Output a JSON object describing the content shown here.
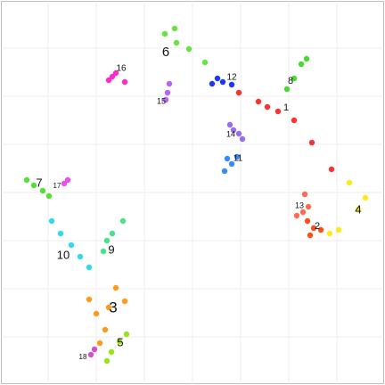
{
  "chart_data": {
    "type": "scatter",
    "title": "",
    "xlabel": "",
    "ylabel": "",
    "xlim": [
      0,
      432
    ],
    "ylim": [
      0,
      432
    ],
    "grid": true,
    "legend": "none",
    "series": [
      {
        "name": "",
        "color": "#ff1a1a",
        "values": [
          [
            312,
            125
          ],
          [
            300,
            120
          ],
          [
            330,
            135
          ],
          [
            350,
            160
          ],
          [
            372,
            190
          ],
          [
            290,
            114
          ],
          [
            268,
            104
          ]
        ]
      },
      {
        "name": "",
        "color": "#ff3b00",
        "values": [
          [
            352,
            256
          ],
          [
            348,
            264
          ],
          [
            360,
            258
          ],
          [
            345,
            248
          ]
        ]
      },
      {
        "name": "",
        "color": "#ff8f00",
        "values": [
          [
            122,
            345
          ],
          [
            108,
            352
          ],
          [
            140,
            338
          ],
          [
            118,
            370
          ],
          [
            130,
            323
          ],
          [
            100,
            336
          ],
          [
            112,
            385
          ]
        ]
      },
      {
        "name": "",
        "color": "#ffe800",
        "values": [
          [
            402,
            235
          ],
          [
            392,
            205
          ],
          [
            380,
            258
          ],
          [
            410,
            222
          ],
          [
            370,
            262
          ]
        ]
      },
      {
        "name": "",
        "color": "#8ee000",
        "values": [
          [
            134,
            383
          ],
          [
            125,
            395
          ],
          [
            142,
            375
          ],
          [
            120,
            405
          ]
        ]
      },
      {
        "name": "",
        "color": "#55e02b",
        "values": [
          [
            198,
            48
          ],
          [
            185,
            38
          ],
          [
            212,
            55
          ],
          [
            230,
            70
          ],
          [
            196,
            32
          ]
        ]
      },
      {
        "name": "",
        "color": "#3de01b",
        "values": [
          [
            38,
            208
          ],
          [
            30,
            202
          ],
          [
            48,
            214
          ],
          [
            55,
            220
          ]
        ]
      },
      {
        "name": "",
        "color": "#35d61a",
        "values": [
          [
            330,
            88
          ],
          [
            338,
            72
          ],
          [
            322,
            100
          ],
          [
            344,
            66
          ]
        ]
      },
      {
        "name": "",
        "color": "#33e07a",
        "values": [
          [
            120,
            270
          ],
          [
            116,
            282
          ],
          [
            126,
            262
          ],
          [
            138,
            248
          ]
        ]
      },
      {
        "name": "",
        "color": "#19d4ef",
        "values": [
          [
            68,
            262
          ],
          [
            58,
            248
          ],
          [
            80,
            275
          ],
          [
            90,
            288
          ],
          [
            100,
            300
          ]
        ]
      },
      {
        "name": "",
        "color": "#1e7fff",
        "values": [
          [
            260,
            184
          ],
          [
            255,
            178
          ],
          [
            266,
            176
          ],
          [
            252,
            192
          ]
        ]
      },
      {
        "name": "",
        "color": "#0022ff",
        "values": [
          [
            250,
            92
          ],
          [
            244,
            88
          ],
          [
            260,
            95
          ],
          [
            238,
            94
          ]
        ]
      },
      {
        "name": "",
        "color": "#ff5a3d",
        "values": [
          [
            340,
            238
          ],
          [
            333,
            242
          ],
          [
            346,
            232
          ],
          [
            342,
            218
          ]
        ]
      },
      {
        "name": "",
        "color": "#8a5cf6",
        "values": [
          [
            268,
            150
          ],
          [
            262,
            146
          ],
          [
            272,
            156
          ],
          [
            258,
            140
          ]
        ]
      },
      {
        "name": "",
        "color": "#b14fff",
        "values": [
          [
            188,
            104
          ],
          [
            190,
            94
          ],
          [
            186,
            112
          ]
        ]
      },
      {
        "name": "",
        "color": "#ff14c8",
        "values": [
          [
            126,
            86
          ],
          [
            122,
            90
          ],
          [
            130,
            82
          ],
          [
            140,
            92
          ]
        ]
      },
      {
        "name": "",
        "color": "#e83cf0",
        "values": [
          [
            72,
            206
          ],
          [
            76,
            202
          ]
        ]
      },
      {
        "name": "",
        "color": "#d13cc8",
        "values": [
          [
            102,
            398
          ],
          [
            106,
            392
          ]
        ]
      }
    ],
    "annotations": [
      {
        "text": "1",
        "x": 321,
        "y": 121,
        "size": 11
      },
      {
        "text": "2",
        "x": 356,
        "y": 254,
        "size": 11
      },
      {
        "text": "3",
        "x": 127,
        "y": 346,
        "size": 17
      },
      {
        "text": "4",
        "x": 402,
        "y": 236,
        "size": 13
      },
      {
        "text": "5",
        "x": 135,
        "y": 385,
        "size": 13
      },
      {
        "text": "6",
        "x": 186,
        "y": 59,
        "size": 15
      },
      {
        "text": "7",
        "x": 44,
        "y": 206,
        "size": 13
      },
      {
        "text": "8",
        "x": 326,
        "y": 91,
        "size": 11
      },
      {
        "text": "9",
        "x": 125,
        "y": 281,
        "size": 13
      },
      {
        "text": "10",
        "x": 71,
        "y": 287,
        "size": 13
      },
      {
        "text": "11",
        "x": 267,
        "y": 178,
        "size": 10
      },
      {
        "text": "12",
        "x": 260,
        "y": 87,
        "size": 10
      },
      {
        "text": "13",
        "x": 336,
        "y": 231,
        "size": 9
      },
      {
        "text": "14",
        "x": 259,
        "y": 151,
        "size": 9
      },
      {
        "text": "15",
        "x": 181,
        "y": 114,
        "size": 9
      },
      {
        "text": "16",
        "x": 136,
        "y": 77,
        "size": 10
      },
      {
        "text": "17",
        "x": 64,
        "y": 209,
        "size": 8
      },
      {
        "text": "18",
        "x": 93,
        "y": 401,
        "size": 8
      }
    ]
  }
}
